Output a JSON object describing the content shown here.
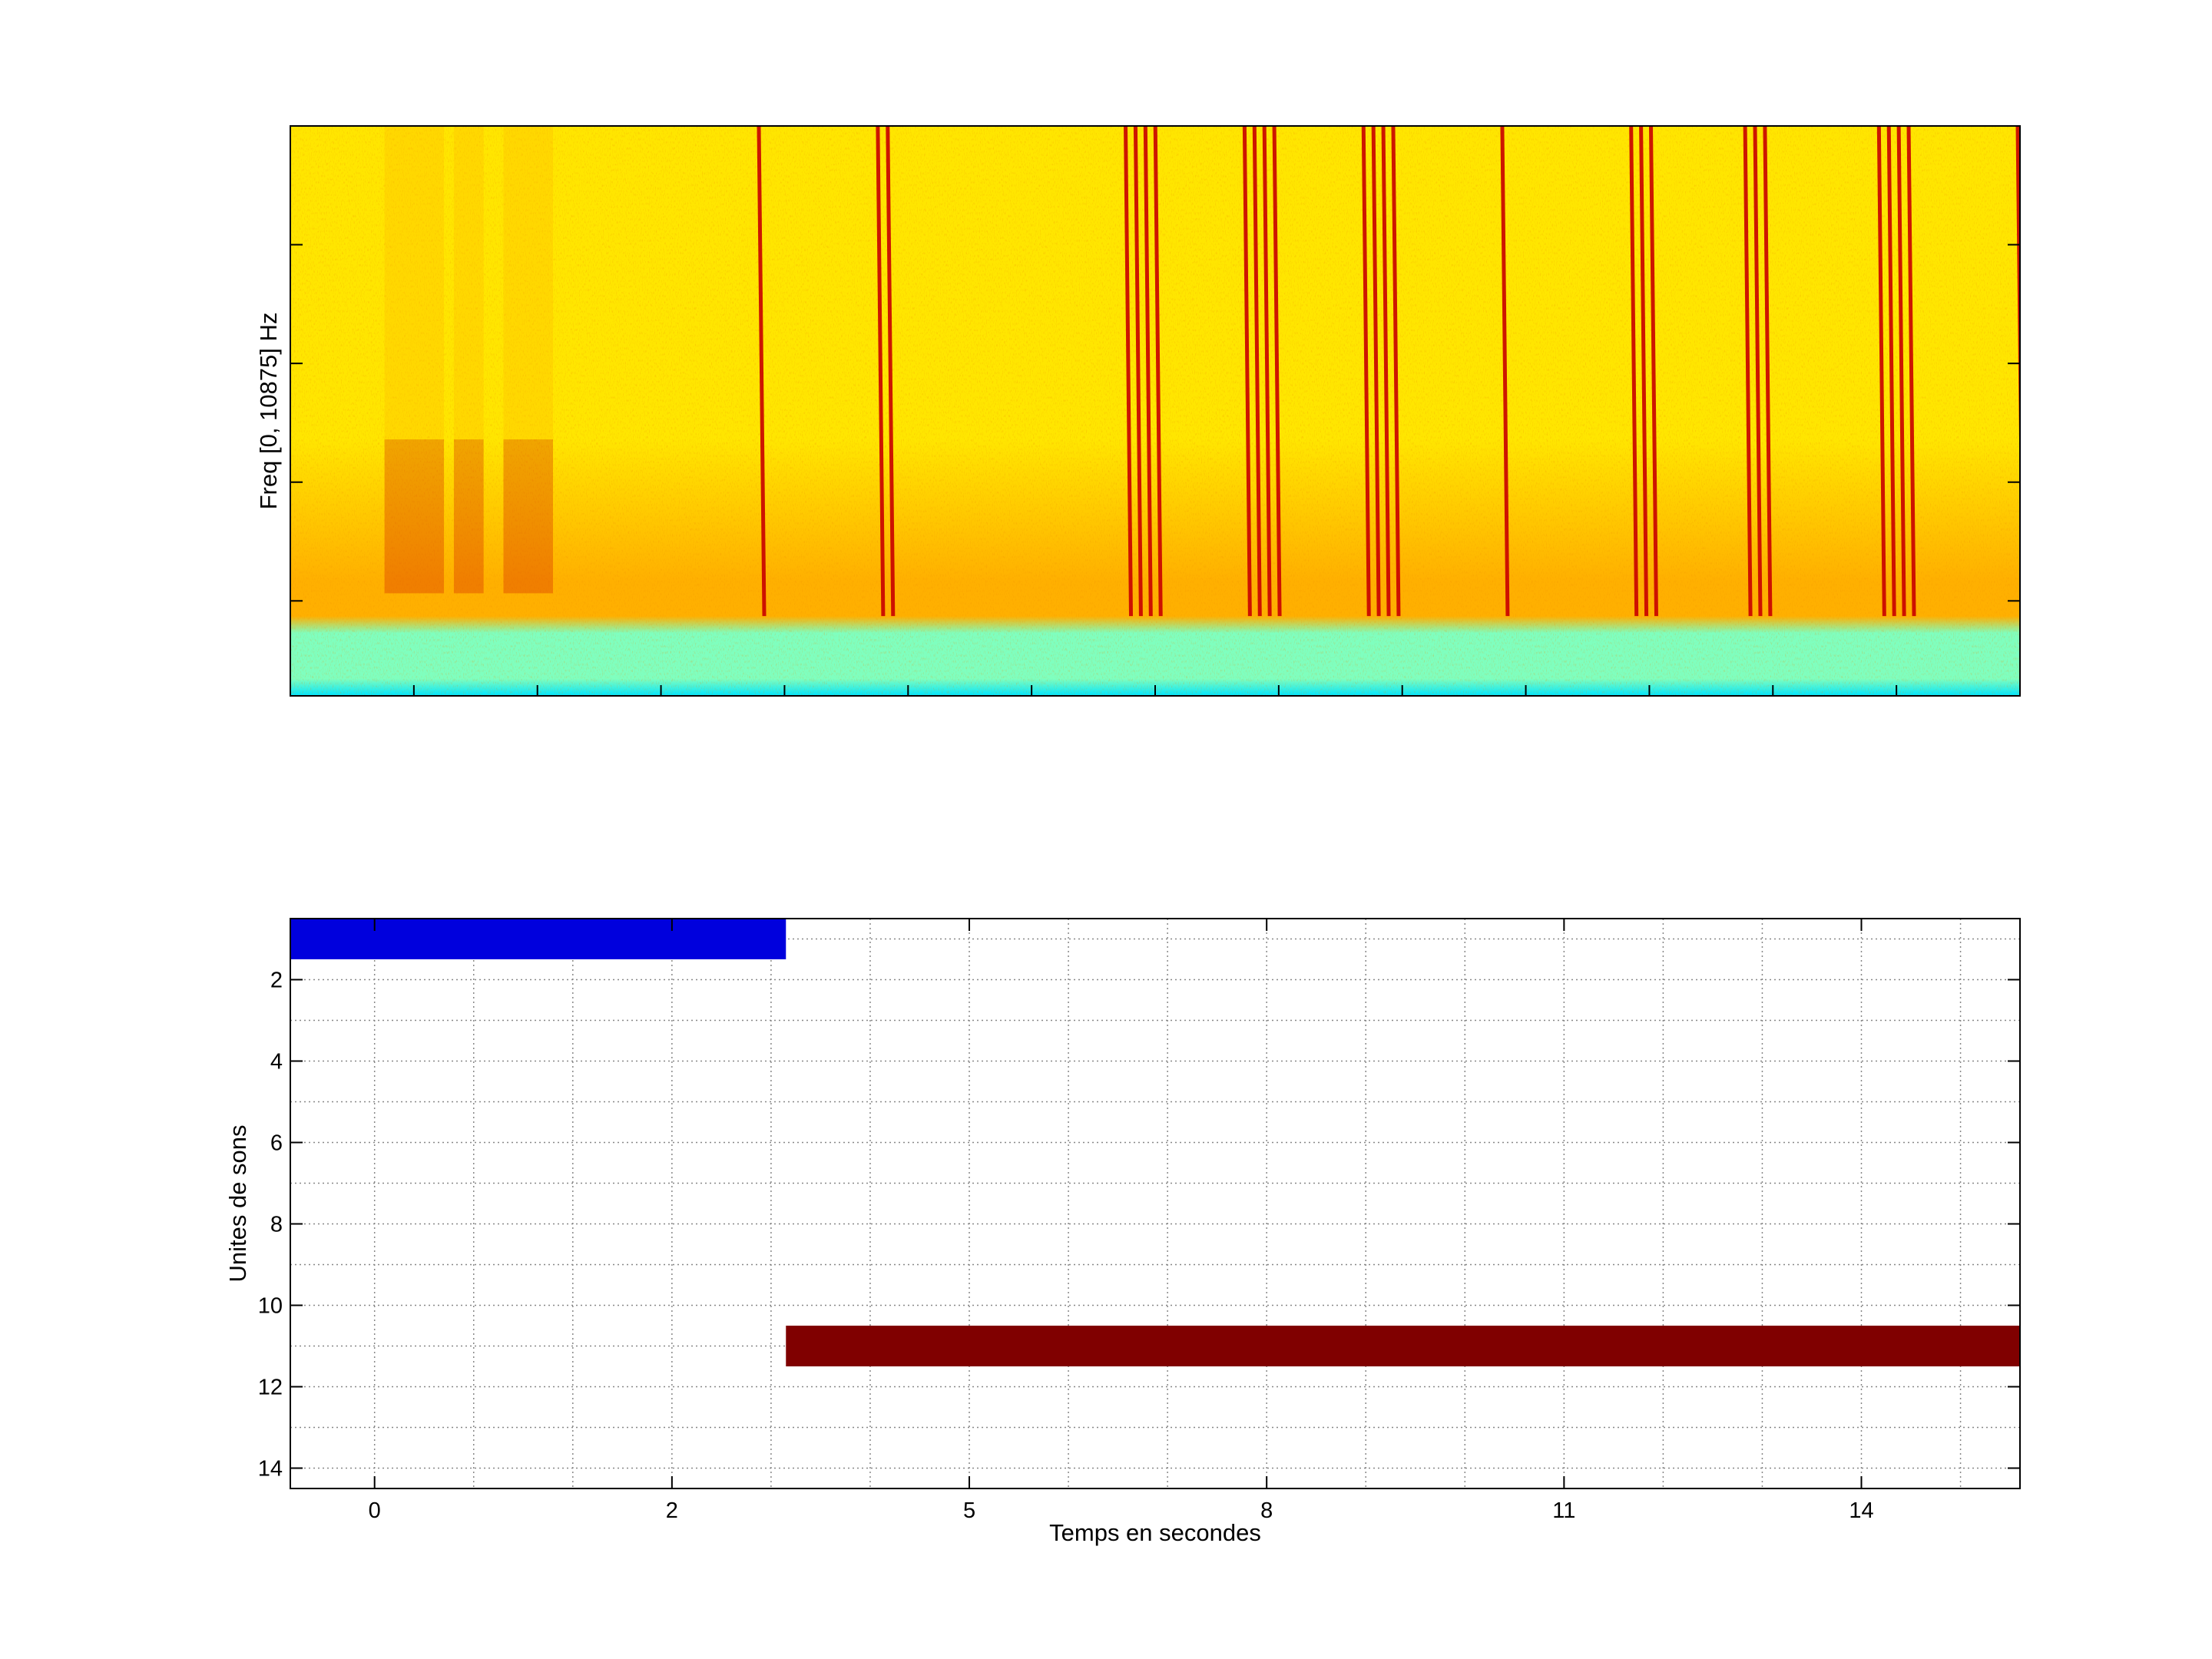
{
  "chart_data": [
    {
      "type": "heatmap",
      "subtype": "spectrogram",
      "title": "",
      "xlabel": "",
      "ylabel": "Freq [0, 10875] Hz",
      "ylim_hz": [
        0,
        10875
      ],
      "xlim_s": [
        -0.85,
        16.6
      ],
      "colormap": "jet",
      "colors": {
        "background": "#ffe600",
        "band": "#ffb000",
        "low_band": "#7fffbf",
        "floor": "#00e5ff",
        "stripe": "#c80000"
      },
      "click_trains_s": [
        [
          3.9
        ],
        [
          5.1,
          5.2
        ],
        [
          7.6,
          7.7,
          7.8,
          7.9
        ],
        [
          8.8,
          8.9,
          9.0,
          9.1
        ],
        [
          10.0,
          10.1,
          10.2,
          10.3
        ],
        [
          11.4
        ],
        [
          12.7,
          12.8,
          12.9
        ],
        [
          13.85,
          13.95,
          14.05
        ],
        [
          15.2,
          15.3,
          15.4,
          15.5
        ],
        [
          16.6
        ]
      ],
      "vocal_activity_s": [
        [
          0.1,
          0.7
        ],
        [
          0.8,
          1.1
        ],
        [
          1.3,
          1.8
        ]
      ],
      "grid": false
    },
    {
      "type": "bar",
      "subtype": "horizontal-segments",
      "title": "",
      "xlabel": "Temps en secondes",
      "ylabel": "Unites de sons",
      "xlim": [
        -0.85,
        16.6
      ],
      "ylim": [
        0.5,
        14.5
      ],
      "y_reversed": true,
      "x_ticks": [
        0,
        2,
        5,
        8,
        11,
        14
      ],
      "x_tick_positions": [
        0,
        3,
        6,
        9,
        12,
        15
      ],
      "y_ticks": [
        2,
        4,
        6,
        8,
        10,
        12,
        14
      ],
      "grid": true,
      "segments": [
        {
          "unit": 1,
          "start": -0.85,
          "end": 4.15,
          "color": "#0000dd"
        },
        {
          "unit": 11,
          "start": 4.15,
          "end": 16.6,
          "color": "#800000"
        }
      ]
    }
  ]
}
